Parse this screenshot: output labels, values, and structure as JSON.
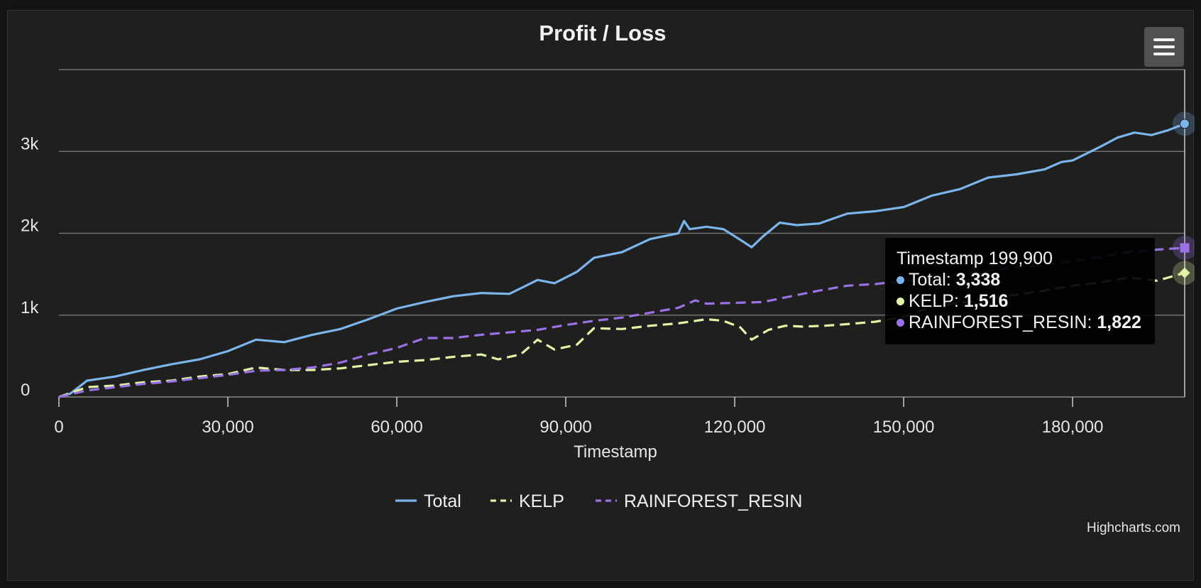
{
  "chart_data": {
    "type": "line",
    "title": "Profit / Loss",
    "xlabel": "Timestamp",
    "ylabel": "",
    "xlim": [
      0,
      199900
    ],
    "ylim": [
      0,
      4000
    ],
    "x_ticks": [
      0,
      30000,
      60000,
      90000,
      120000,
      150000,
      180000
    ],
    "x_tick_labels": [
      "0",
      "30,000",
      "60,000",
      "90,000",
      "120,000",
      "150,000",
      "180,000"
    ],
    "y_ticks": [
      0,
      1000,
      2000,
      3000
    ],
    "y_tick_labels": [
      "0",
      "1k",
      "2k",
      "3k"
    ],
    "grid": true,
    "legend_position": "bottom-center",
    "series": [
      {
        "name": "Total",
        "color": "#7cb5ec",
        "dash": "solid",
        "marker": "circle",
        "points": [
          [
            0,
            0
          ],
          [
            2000,
            40
          ],
          [
            5000,
            200
          ],
          [
            10000,
            250
          ],
          [
            15000,
            330
          ],
          [
            20000,
            400
          ],
          [
            25000,
            460
          ],
          [
            30000,
            560
          ],
          [
            35000,
            700
          ],
          [
            40000,
            670
          ],
          [
            45000,
            760
          ],
          [
            50000,
            830
          ],
          [
            55000,
            950
          ],
          [
            60000,
            1080
          ],
          [
            65000,
            1160
          ],
          [
            70000,
            1230
          ],
          [
            75000,
            1270
          ],
          [
            80000,
            1260
          ],
          [
            85000,
            1430
          ],
          [
            88000,
            1390
          ],
          [
            92000,
            1530
          ],
          [
            95000,
            1700
          ],
          [
            100000,
            1770
          ],
          [
            105000,
            1930
          ],
          [
            110000,
            2000
          ],
          [
            111000,
            2150
          ],
          [
            112000,
            2050
          ],
          [
            115000,
            2080
          ],
          [
            118000,
            2050
          ],
          [
            121000,
            1920
          ],
          [
            123000,
            1830
          ],
          [
            125000,
            1960
          ],
          [
            128000,
            2130
          ],
          [
            131000,
            2100
          ],
          [
            135000,
            2120
          ],
          [
            140000,
            2240
          ],
          [
            145000,
            2270
          ],
          [
            150000,
            2320
          ],
          [
            155000,
            2460
          ],
          [
            160000,
            2540
          ],
          [
            165000,
            2680
          ],
          [
            170000,
            2720
          ],
          [
            175000,
            2780
          ],
          [
            178000,
            2870
          ],
          [
            180000,
            2890
          ],
          [
            185000,
            3060
          ],
          [
            188000,
            3170
          ],
          [
            191000,
            3230
          ],
          [
            194000,
            3200
          ],
          [
            197000,
            3260
          ],
          [
            199900,
            3338
          ]
        ]
      },
      {
        "name": "KELP",
        "color": "#dff4a4",
        "dash": "dashed",
        "marker": "diamond",
        "points": [
          [
            0,
            0
          ],
          [
            5000,
            120
          ],
          [
            10000,
            140
          ],
          [
            15000,
            180
          ],
          [
            20000,
            200
          ],
          [
            25000,
            250
          ],
          [
            30000,
            280
          ],
          [
            35000,
            360
          ],
          [
            40000,
            330
          ],
          [
            45000,
            330
          ],
          [
            50000,
            350
          ],
          [
            55000,
            390
          ],
          [
            60000,
            430
          ],
          [
            65000,
            450
          ],
          [
            70000,
            490
          ],
          [
            75000,
            520
          ],
          [
            78000,
            460
          ],
          [
            82000,
            520
          ],
          [
            85000,
            700
          ],
          [
            88000,
            580
          ],
          [
            92000,
            640
          ],
          [
            95000,
            840
          ],
          [
            100000,
            830
          ],
          [
            105000,
            870
          ],
          [
            110000,
            900
          ],
          [
            112000,
            920
          ],
          [
            115000,
            950
          ],
          [
            118000,
            930
          ],
          [
            121000,
            850
          ],
          [
            123000,
            700
          ],
          [
            126000,
            820
          ],
          [
            129000,
            870
          ],
          [
            132000,
            860
          ],
          [
            136000,
            870
          ],
          [
            140000,
            890
          ],
          [
            145000,
            920
          ],
          [
            150000,
            980
          ],
          [
            155000,
            1100
          ],
          [
            160000,
            1150
          ],
          [
            165000,
            1200
          ],
          [
            170000,
            1250
          ],
          [
            175000,
            1300
          ],
          [
            180000,
            1360
          ],
          [
            185000,
            1400
          ],
          [
            190000,
            1460
          ],
          [
            195000,
            1420
          ],
          [
            199900,
            1516
          ]
        ]
      },
      {
        "name": "RAINFOREST_RESIN",
        "color": "#9a72e6",
        "dash": "dashed",
        "marker": "square",
        "points": [
          [
            0,
            0
          ],
          [
            5000,
            80
          ],
          [
            10000,
            120
          ],
          [
            15000,
            160
          ],
          [
            20000,
            190
          ],
          [
            25000,
            230
          ],
          [
            30000,
            270
          ],
          [
            35000,
            320
          ],
          [
            40000,
            330
          ],
          [
            45000,
            360
          ],
          [
            50000,
            420
          ],
          [
            55000,
            520
          ],
          [
            60000,
            600
          ],
          [
            65000,
            720
          ],
          [
            70000,
            720
          ],
          [
            75000,
            760
          ],
          [
            80000,
            790
          ],
          [
            85000,
            820
          ],
          [
            90000,
            880
          ],
          [
            95000,
            930
          ],
          [
            100000,
            970
          ],
          [
            105000,
            1030
          ],
          [
            110000,
            1090
          ],
          [
            113000,
            1180
          ],
          [
            115000,
            1140
          ],
          [
            120000,
            1150
          ],
          [
            125000,
            1160
          ],
          [
            130000,
            1230
          ],
          [
            135000,
            1300
          ],
          [
            140000,
            1360
          ],
          [
            145000,
            1380
          ],
          [
            150000,
            1420
          ],
          [
            155000,
            1450
          ],
          [
            160000,
            1500
          ],
          [
            165000,
            1540
          ],
          [
            170000,
            1580
          ],
          [
            175000,
            1620
          ],
          [
            180000,
            1660
          ],
          [
            185000,
            1710
          ],
          [
            190000,
            1770
          ],
          [
            195000,
            1800
          ],
          [
            199900,
            1822
          ]
        ]
      }
    ],
    "tooltip": {
      "header": "Timestamp 199,900",
      "rows": [
        {
          "name": "Total",
          "value": "3,338",
          "color": "#7cb5ec"
        },
        {
          "name": "KELP",
          "value": "1,516",
          "color": "#dff4a4"
        },
        {
          "name": "RAINFOREST_RESIN",
          "value": "1,822",
          "color": "#9a72e6"
        }
      ]
    },
    "credit": "Highcharts.com"
  }
}
